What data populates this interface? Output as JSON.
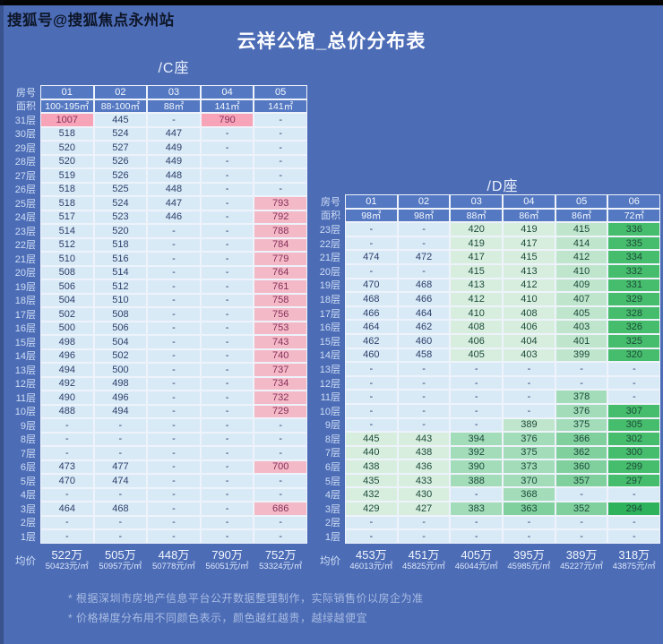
{
  "watermark": "搜狐号@搜狐焦点永州站",
  "title": "云祥公馆_总价分布表",
  "footnotes": [
    "* 根据深圳市房地产信息平台公开数据整理制作，实际销售价以房企为准",
    "* 价格梯度分布用不同颜色表示，颜色越红越贵，越绿越便宜"
  ],
  "palette": {
    "b": "#d9eaf7",
    "p1": "#f7a3b8",
    "p2": "#f4b9c7",
    "g1": "#d7eedf",
    "g2": "#bfe6cd",
    "g3": "#a2dcb9",
    "g4": "#7fd09d",
    "g5": "#46bd6c",
    "g6": "#2fb25c",
    "text_blue": "#2c3e68",
    "text_pink": "#85305a",
    "text_green": "#1d4a3a"
  },
  "chart_data": [
    {
      "type": "table",
      "title": "/C座",
      "row_header_label": "房号",
      "area_label": "面积",
      "avg_label": "均价",
      "columns": [
        "01",
        "02",
        "03",
        "04",
        "05"
      ],
      "areas": [
        "100-195㎡",
        "88-100㎡",
        "88㎡",
        "141㎡",
        "141㎡"
      ],
      "rows": [
        {
          "floor": "31层",
          "values": [
            "1007",
            "445",
            "-",
            "790",
            "-"
          ],
          "colors": [
            "p1",
            "b",
            "b",
            "p1",
            "b"
          ]
        },
        {
          "floor": "30层",
          "values": [
            "518",
            "524",
            "447",
            "-",
            "-"
          ],
          "colors": [
            "b",
            "b",
            "b",
            "b",
            "b"
          ]
        },
        {
          "floor": "29层",
          "values": [
            "520",
            "527",
            "449",
            "-",
            "-"
          ],
          "colors": [
            "b",
            "b",
            "b",
            "b",
            "b"
          ]
        },
        {
          "floor": "28层",
          "values": [
            "520",
            "526",
            "449",
            "-",
            "-"
          ],
          "colors": [
            "b",
            "b",
            "b",
            "b",
            "b"
          ]
        },
        {
          "floor": "27层",
          "values": [
            "519",
            "526",
            "448",
            "-",
            "-"
          ],
          "colors": [
            "b",
            "b",
            "b",
            "b",
            "b"
          ]
        },
        {
          "floor": "26层",
          "values": [
            "518",
            "525",
            "448",
            "-",
            "-"
          ],
          "colors": [
            "b",
            "b",
            "b",
            "b",
            "b"
          ]
        },
        {
          "floor": "25层",
          "values": [
            "518",
            "524",
            "447",
            "-",
            "793"
          ],
          "colors": [
            "b",
            "b",
            "b",
            "b",
            "p2"
          ]
        },
        {
          "floor": "24层",
          "values": [
            "517",
            "523",
            "446",
            "-",
            "792"
          ],
          "colors": [
            "b",
            "b",
            "b",
            "b",
            "p2"
          ]
        },
        {
          "floor": "23层",
          "values": [
            "514",
            "520",
            "-",
            "-",
            "788"
          ],
          "colors": [
            "b",
            "b",
            "b",
            "b",
            "p2"
          ]
        },
        {
          "floor": "22层",
          "values": [
            "512",
            "518",
            "-",
            "-",
            "784"
          ],
          "colors": [
            "b",
            "b",
            "b",
            "b",
            "p2"
          ]
        },
        {
          "floor": "21层",
          "values": [
            "510",
            "516",
            "-",
            "-",
            "779"
          ],
          "colors": [
            "b",
            "b",
            "b",
            "b",
            "p2"
          ]
        },
        {
          "floor": "20层",
          "values": [
            "508",
            "514",
            "-",
            "-",
            "764"
          ],
          "colors": [
            "b",
            "b",
            "b",
            "b",
            "p2"
          ]
        },
        {
          "floor": "19层",
          "values": [
            "506",
            "512",
            "-",
            "-",
            "761"
          ],
          "colors": [
            "b",
            "b",
            "b",
            "b",
            "p2"
          ]
        },
        {
          "floor": "18层",
          "values": [
            "504",
            "510",
            "-",
            "-",
            "758"
          ],
          "colors": [
            "b",
            "b",
            "b",
            "b",
            "p2"
          ]
        },
        {
          "floor": "17层",
          "values": [
            "502",
            "508",
            "-",
            "-",
            "756"
          ],
          "colors": [
            "b",
            "b",
            "b",
            "b",
            "p2"
          ]
        },
        {
          "floor": "16层",
          "values": [
            "500",
            "506",
            "-",
            "-",
            "753"
          ],
          "colors": [
            "b",
            "b",
            "b",
            "b",
            "p2"
          ]
        },
        {
          "floor": "15层",
          "values": [
            "498",
            "504",
            "-",
            "-",
            "743"
          ],
          "colors": [
            "b",
            "b",
            "b",
            "b",
            "p2"
          ]
        },
        {
          "floor": "14层",
          "values": [
            "496",
            "502",
            "-",
            "-",
            "740"
          ],
          "colors": [
            "b",
            "b",
            "b",
            "b",
            "p2"
          ]
        },
        {
          "floor": "13层",
          "values": [
            "494",
            "500",
            "-",
            "-",
            "737"
          ],
          "colors": [
            "b",
            "b",
            "b",
            "b",
            "p2"
          ]
        },
        {
          "floor": "12层",
          "values": [
            "492",
            "498",
            "-",
            "-",
            "734"
          ],
          "colors": [
            "b",
            "b",
            "b",
            "b",
            "p2"
          ]
        },
        {
          "floor": "11层",
          "values": [
            "490",
            "496",
            "-",
            "-",
            "732"
          ],
          "colors": [
            "b",
            "b",
            "b",
            "b",
            "p2"
          ]
        },
        {
          "floor": "10层",
          "values": [
            "488",
            "494",
            "-",
            "-",
            "729"
          ],
          "colors": [
            "b",
            "b",
            "b",
            "b",
            "p2"
          ]
        },
        {
          "floor": "9层",
          "values": [
            "-",
            "-",
            "-",
            "-",
            "-"
          ],
          "colors": [
            "b",
            "b",
            "b",
            "b",
            "b"
          ]
        },
        {
          "floor": "8层",
          "values": [
            "-",
            "-",
            "-",
            "-",
            "-"
          ],
          "colors": [
            "b",
            "b",
            "b",
            "b",
            "b"
          ]
        },
        {
          "floor": "7层",
          "values": [
            "-",
            "-",
            "-",
            "-",
            "-"
          ],
          "colors": [
            "b",
            "b",
            "b",
            "b",
            "b"
          ]
        },
        {
          "floor": "6层",
          "values": [
            "473",
            "477",
            "-",
            "-",
            "700"
          ],
          "colors": [
            "b",
            "b",
            "b",
            "b",
            "p2"
          ]
        },
        {
          "floor": "5层",
          "values": [
            "470",
            "474",
            "-",
            "-",
            "-"
          ],
          "colors": [
            "b",
            "b",
            "b",
            "b",
            "b"
          ]
        },
        {
          "floor": "4层",
          "values": [
            "-",
            "-",
            "-",
            "-",
            "-"
          ],
          "colors": [
            "b",
            "b",
            "b",
            "b",
            "b"
          ]
        },
        {
          "floor": "3层",
          "values": [
            "464",
            "468",
            "-",
            "-",
            "686"
          ],
          "colors": [
            "b",
            "b",
            "b",
            "b",
            "p2"
          ]
        },
        {
          "floor": "2层",
          "values": [
            "-",
            "-",
            "-",
            "-",
            "-"
          ],
          "colors": [
            "b",
            "b",
            "b",
            "b",
            "b"
          ]
        },
        {
          "floor": "1层",
          "values": [
            "-",
            "-",
            "-",
            "-",
            "-"
          ],
          "colors": [
            "b",
            "b",
            "b",
            "b",
            "b"
          ]
        }
      ],
      "avg_price": [
        {
          "total": "522万",
          "per_sqm": "50423元/㎡"
        },
        {
          "total": "505万",
          "per_sqm": "50957元/㎡"
        },
        {
          "total": "448万",
          "per_sqm": "50778元/㎡"
        },
        {
          "total": "790万",
          "per_sqm": "56051元/㎡"
        },
        {
          "total": "752万",
          "per_sqm": "53324元/㎡"
        }
      ]
    },
    {
      "type": "table",
      "title": "/D座",
      "row_header_label": "房号",
      "area_label": "面积",
      "avg_label": "均价",
      "columns": [
        "01",
        "02",
        "03",
        "04",
        "05",
        "06"
      ],
      "areas": [
        "98㎡",
        "98㎡",
        "88㎡",
        "86㎡",
        "86㎡",
        "72㎡"
      ],
      "rows": [
        {
          "floor": "23层",
          "values": [
            "-",
            "-",
            "420",
            "419",
            "415",
            "336"
          ],
          "colors": [
            "b",
            "b",
            "g1",
            "g1",
            "g2",
            "g5"
          ]
        },
        {
          "floor": "22层",
          "values": [
            "-",
            "-",
            "419",
            "417",
            "414",
            "335"
          ],
          "colors": [
            "b",
            "b",
            "g1",
            "g1",
            "g2",
            "g5"
          ]
        },
        {
          "floor": "21层",
          "values": [
            "474",
            "472",
            "417",
            "415",
            "412",
            "334"
          ],
          "colors": [
            "b",
            "b",
            "g1",
            "g1",
            "g2",
            "g5"
          ]
        },
        {
          "floor": "20层",
          "values": [
            "-",
            "-",
            "415",
            "413",
            "410",
            "332"
          ],
          "colors": [
            "b",
            "b",
            "g1",
            "g1",
            "g2",
            "g5"
          ]
        },
        {
          "floor": "19层",
          "values": [
            "470",
            "468",
            "413",
            "412",
            "409",
            "331"
          ],
          "colors": [
            "b",
            "b",
            "g1",
            "g1",
            "g2",
            "g5"
          ]
        },
        {
          "floor": "18层",
          "values": [
            "468",
            "466",
            "412",
            "410",
            "407",
            "329"
          ],
          "colors": [
            "b",
            "b",
            "g1",
            "g1",
            "g2",
            "g5"
          ]
        },
        {
          "floor": "17层",
          "values": [
            "466",
            "464",
            "410",
            "408",
            "405",
            "328"
          ],
          "colors": [
            "b",
            "b",
            "g1",
            "g1",
            "g2",
            "g5"
          ]
        },
        {
          "floor": "16层",
          "values": [
            "464",
            "462",
            "408",
            "406",
            "403",
            "326"
          ],
          "colors": [
            "b",
            "b",
            "g1",
            "g1",
            "g2",
            "g5"
          ]
        },
        {
          "floor": "15层",
          "values": [
            "462",
            "460",
            "406",
            "404",
            "401",
            "325"
          ],
          "colors": [
            "b",
            "b",
            "g1",
            "g1",
            "g2",
            "g5"
          ]
        },
        {
          "floor": "14层",
          "values": [
            "460",
            "458",
            "405",
            "403",
            "399",
            "320"
          ],
          "colors": [
            "b",
            "b",
            "g1",
            "g1",
            "g2",
            "g5"
          ]
        },
        {
          "floor": "13层",
          "values": [
            "-",
            "-",
            "-",
            "-",
            "-",
            "-"
          ],
          "colors": [
            "b",
            "b",
            "b",
            "b",
            "b",
            "b"
          ]
        },
        {
          "floor": "12层",
          "values": [
            "-",
            "-",
            "-",
            "-",
            "-",
            "-"
          ],
          "colors": [
            "b",
            "b",
            "b",
            "b",
            "b",
            "b"
          ]
        },
        {
          "floor": "11层",
          "values": [
            "-",
            "-",
            "-",
            "-",
            "378",
            "-"
          ],
          "colors": [
            "b",
            "b",
            "b",
            "b",
            "g3",
            "b"
          ]
        },
        {
          "floor": "10层",
          "values": [
            "-",
            "-",
            "-",
            "-",
            "376",
            "307"
          ],
          "colors": [
            "b",
            "b",
            "b",
            "b",
            "g3",
            "g5"
          ]
        },
        {
          "floor": "9层",
          "values": [
            "-",
            "-",
            "-",
            "389",
            "375",
            "305"
          ],
          "colors": [
            "b",
            "b",
            "b",
            "g2",
            "g3",
            "g5"
          ]
        },
        {
          "floor": "8层",
          "values": [
            "445",
            "443",
            "394",
            "376",
            "366",
            "302"
          ],
          "colors": [
            "g1",
            "g1",
            "g3",
            "g3",
            "g4",
            "g5"
          ]
        },
        {
          "floor": "7层",
          "values": [
            "440",
            "438",
            "392",
            "375",
            "362",
            "300"
          ],
          "colors": [
            "g1",
            "g1",
            "g3",
            "g3",
            "g4",
            "g5"
          ]
        },
        {
          "floor": "6层",
          "values": [
            "438",
            "436",
            "390",
            "373",
            "360",
            "299"
          ],
          "colors": [
            "g1",
            "g1",
            "g3",
            "g3",
            "g4",
            "g5"
          ]
        },
        {
          "floor": "5层",
          "values": [
            "435",
            "433",
            "388",
            "370",
            "357",
            "297"
          ],
          "colors": [
            "g1",
            "g1",
            "g3",
            "g3",
            "g4",
            "g5"
          ]
        },
        {
          "floor": "4层",
          "values": [
            "432",
            "430",
            "-",
            "368",
            "-",
            "-"
          ],
          "colors": [
            "g1",
            "g1",
            "b",
            "g3",
            "b",
            "b"
          ]
        },
        {
          "floor": "3层",
          "values": [
            "429",
            "427",
            "383",
            "363",
            "352",
            "294"
          ],
          "colors": [
            "g1",
            "g1",
            "g3",
            "g4",
            "g4",
            "g6"
          ]
        },
        {
          "floor": "2层",
          "values": [
            "-",
            "-",
            "-",
            "-",
            "-",
            "-"
          ],
          "colors": [
            "b",
            "b",
            "b",
            "b",
            "b",
            "b"
          ]
        },
        {
          "floor": "1层",
          "values": [
            "-",
            "-",
            "-",
            "-",
            "-",
            "-"
          ],
          "colors": [
            "b",
            "b",
            "b",
            "b",
            "b",
            "b"
          ]
        }
      ],
      "avg_price": [
        {
          "total": "453万",
          "per_sqm": "46013元/㎡"
        },
        {
          "total": "451万",
          "per_sqm": "45825元/㎡"
        },
        {
          "total": "405万",
          "per_sqm": "46044元/㎡"
        },
        {
          "total": "395万",
          "per_sqm": "45985元/㎡"
        },
        {
          "total": "389万",
          "per_sqm": "45227元/㎡"
        },
        {
          "total": "318万",
          "per_sqm": "43875元/㎡"
        }
      ]
    }
  ]
}
